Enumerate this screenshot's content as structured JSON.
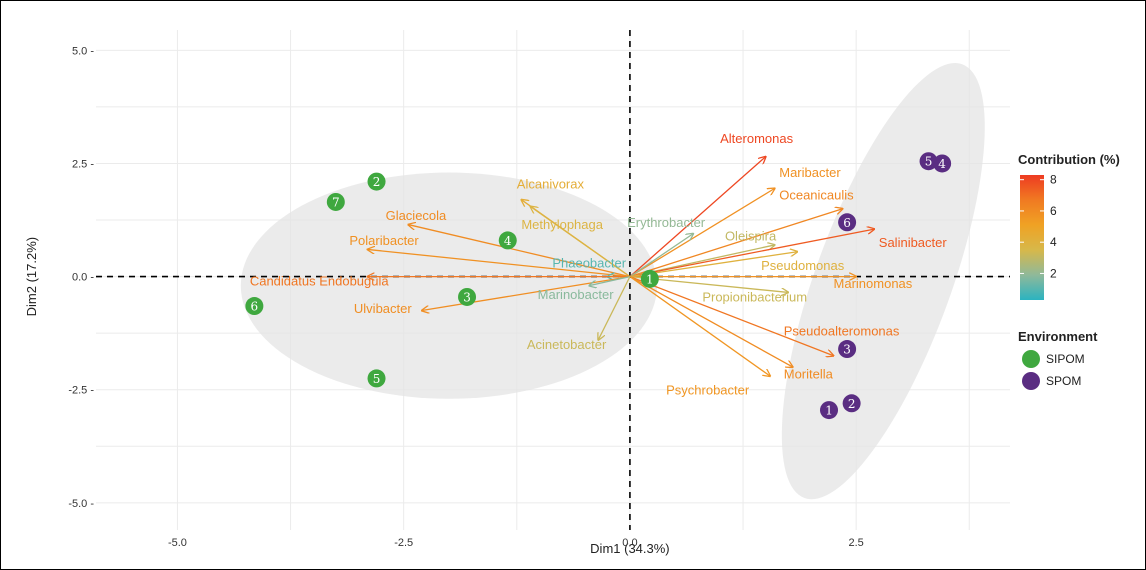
{
  "chart_data": {
    "type": "scatter",
    "subtype": "pca-biplot",
    "xlabel": "Dim1 (34.3%)",
    "ylabel": "Dim2 (17.2%)",
    "xlim": [
      -5.9,
      4.2
    ],
    "ylim": [
      -5.6,
      5.45
    ],
    "xticks": [
      -5.0,
      -2.5,
      0.0,
      2.5
    ],
    "yticks": [
      -5.0,
      -2.5,
      0.0,
      2.5,
      5.0
    ],
    "xtick_labels": [
      "-5.0",
      "-2.5",
      "0.0",
      "2.5"
    ],
    "ytick_labels": [
      "-5.0 -",
      "-2.5 -",
      "0.0 -",
      "2.5 -",
      "5.0 -"
    ],
    "grid": true,
    "reference_lines": [
      {
        "axis": "x",
        "value": 0,
        "style": "dashed"
      },
      {
        "axis": "y",
        "value": 0,
        "style": "dashed"
      }
    ],
    "ellipses": [
      {
        "group": "SIPOM",
        "cx": -2.0,
        "cy": -0.2,
        "rx": 2.3,
        "ry": 2.5,
        "angle": 0,
        "color": "#e4e4e4"
      },
      {
        "group": "SPOM",
        "cx": 2.8,
        "cy": -0.1,
        "rx": 0.75,
        "ry": 5.1,
        "angle": -20,
        "color": "#e4e4e4"
      }
    ],
    "groups": [
      {
        "name": "SIPOM",
        "color": "#3fa83f"
      },
      {
        "name": "SPOM",
        "color": "#5a2d82"
      }
    ],
    "points": [
      {
        "label": "1",
        "group": "SIPOM",
        "x": 0.22,
        "y": -0.05
      },
      {
        "label": "2",
        "group": "SIPOM",
        "x": -2.8,
        "y": 2.1
      },
      {
        "label": "3",
        "group": "SIPOM",
        "x": -1.8,
        "y": -0.45
      },
      {
        "label": "4",
        "group": "SIPOM",
        "x": -1.35,
        "y": 0.8
      },
      {
        "label": "5",
        "group": "SIPOM",
        "x": -2.8,
        "y": -2.25
      },
      {
        "label": "6",
        "group": "SIPOM",
        "x": -4.15,
        "y": -0.65
      },
      {
        "label": "7",
        "group": "SIPOM",
        "x": -3.25,
        "y": 1.65
      },
      {
        "label": "1",
        "group": "SPOM",
        "x": 2.2,
        "y": -2.95
      },
      {
        "label": "2",
        "group": "SPOM",
        "x": 2.45,
        "y": -2.8
      },
      {
        "label": "3",
        "group": "SPOM",
        "x": 2.4,
        "y": -1.6
      },
      {
        "label": "4",
        "group": "SPOM",
        "x": 3.45,
        "y": 2.5
      },
      {
        "label": "5",
        "group": "SPOM",
        "x": 3.3,
        "y": 2.55
      },
      {
        "label": "6",
        "group": "SPOM",
        "x": 2.4,
        "y": 1.2
      }
    ],
    "variables": [
      {
        "name": "Alteromonas",
        "x": 1.5,
        "y": 2.65,
        "contribution": 8.0,
        "lx": 1.4,
        "ly": 2.95,
        "anchor": "middle"
      },
      {
        "name": "Maribacter",
        "x": 1.6,
        "y": 1.95,
        "contribution": 5.8,
        "lx": 1.65,
        "ly": 2.2,
        "anchor": "start"
      },
      {
        "name": "Oceanicaulis",
        "x": 2.35,
        "y": 1.5,
        "contribution": 6.2,
        "lx": 1.65,
        "ly": 1.7,
        "anchor": "start"
      },
      {
        "name": "Erythrobacter",
        "x": 0.7,
        "y": 0.95,
        "contribution": 2.0,
        "lx": 0.4,
        "ly": 1.1,
        "anchor": "middle"
      },
      {
        "name": "Oleispira",
        "x": 1.6,
        "y": 0.7,
        "contribution": 3.0,
        "lx": 1.05,
        "ly": 0.8,
        "anchor": "start"
      },
      {
        "name": "Salinibacter",
        "x": 2.7,
        "y": 1.05,
        "contribution": 7.5,
        "lx": 2.75,
        "ly": 0.65,
        "anchor": "start"
      },
      {
        "name": "Pseudomonas",
        "x": 1.85,
        "y": 0.55,
        "contribution": 4.0,
        "lx": 1.45,
        "ly": 0.15,
        "anchor": "start"
      },
      {
        "name": "Marinomonas",
        "x": 2.5,
        "y": 0.0,
        "contribution": 5.8,
        "lx": 2.25,
        "ly": -0.25,
        "anchor": "start"
      },
      {
        "name": "Propionibacterium",
        "x": 1.75,
        "y": -0.35,
        "contribution": 3.2,
        "lx": 0.8,
        "ly": -0.55,
        "anchor": "start"
      },
      {
        "name": "Pseudoalteromonas",
        "x": 2.25,
        "y": -1.75,
        "contribution": 6.8,
        "lx": 1.7,
        "ly": -1.3,
        "anchor": "start"
      },
      {
        "name": "Moritella",
        "x": 1.8,
        "y": -2.0,
        "contribution": 6.0,
        "lx": 1.7,
        "ly": -2.25,
        "anchor": "start"
      },
      {
        "name": "Psychrobacter",
        "x": 1.55,
        "y": -2.2,
        "contribution": 5.6,
        "lx": 0.4,
        "ly": -2.6,
        "anchor": "start"
      },
      {
        "name": "Alcanivorax",
        "x": -1.2,
        "y": 1.7,
        "contribution": 4.3,
        "lx": -1.25,
        "ly": 1.95,
        "anchor": "start"
      },
      {
        "name": "Methylophaga",
        "x": -1.1,
        "y": 1.55,
        "contribution": 3.8,
        "lx": -1.2,
        "ly": 1.05,
        "anchor": "start"
      },
      {
        "name": "Glaciecola",
        "x": -2.45,
        "y": 1.15,
        "contribution": 6.0,
        "lx": -2.7,
        "ly": 1.25,
        "anchor": "start"
      },
      {
        "name": "Polaribacter",
        "x": -2.9,
        "y": 0.6,
        "contribution": 5.8,
        "lx": -3.1,
        "ly": 0.7,
        "anchor": "start"
      },
      {
        "name": "Phaeobacter",
        "x": -0.25,
        "y": 0.0,
        "contribution": 1.0,
        "lx": -0.45,
        "ly": 0.2,
        "anchor": "middle"
      },
      {
        "name": "Candidatus Endobugula",
        "x": -2.9,
        "y": 0.0,
        "contribution": 6.8,
        "lx": -4.2,
        "ly": -0.2,
        "anchor": "start"
      },
      {
        "name": "Ulvibacter",
        "x": -2.3,
        "y": -0.75,
        "contribution": 5.9,
        "lx": -3.05,
        "ly": -0.8,
        "anchor": "start"
      },
      {
        "name": "Marinobacter",
        "x": -0.45,
        "y": -0.2,
        "contribution": 1.8,
        "lx": -0.6,
        "ly": -0.5,
        "anchor": "middle"
      },
      {
        "name": "Acinetobacter",
        "x": -0.35,
        "y": -1.4,
        "contribution": 3.2,
        "lx": -0.7,
        "ly": -1.6,
        "anchor": "middle"
      }
    ],
    "legend": {
      "placement": "right",
      "contribution_title": "Contribution (%)",
      "contribution_ticks": [
        2,
        4,
        6,
        8
      ],
      "contribution_range": [
        0.3,
        8.3
      ],
      "environment_title": "Environment",
      "environment_entries": [
        "SIPOM",
        "SPOM"
      ]
    },
    "colorscale": [
      "#2bb3c0",
      "#8fb99a",
      "#d7b84a",
      "#f0a224",
      "#f07a22",
      "#ee3b22"
    ]
  }
}
